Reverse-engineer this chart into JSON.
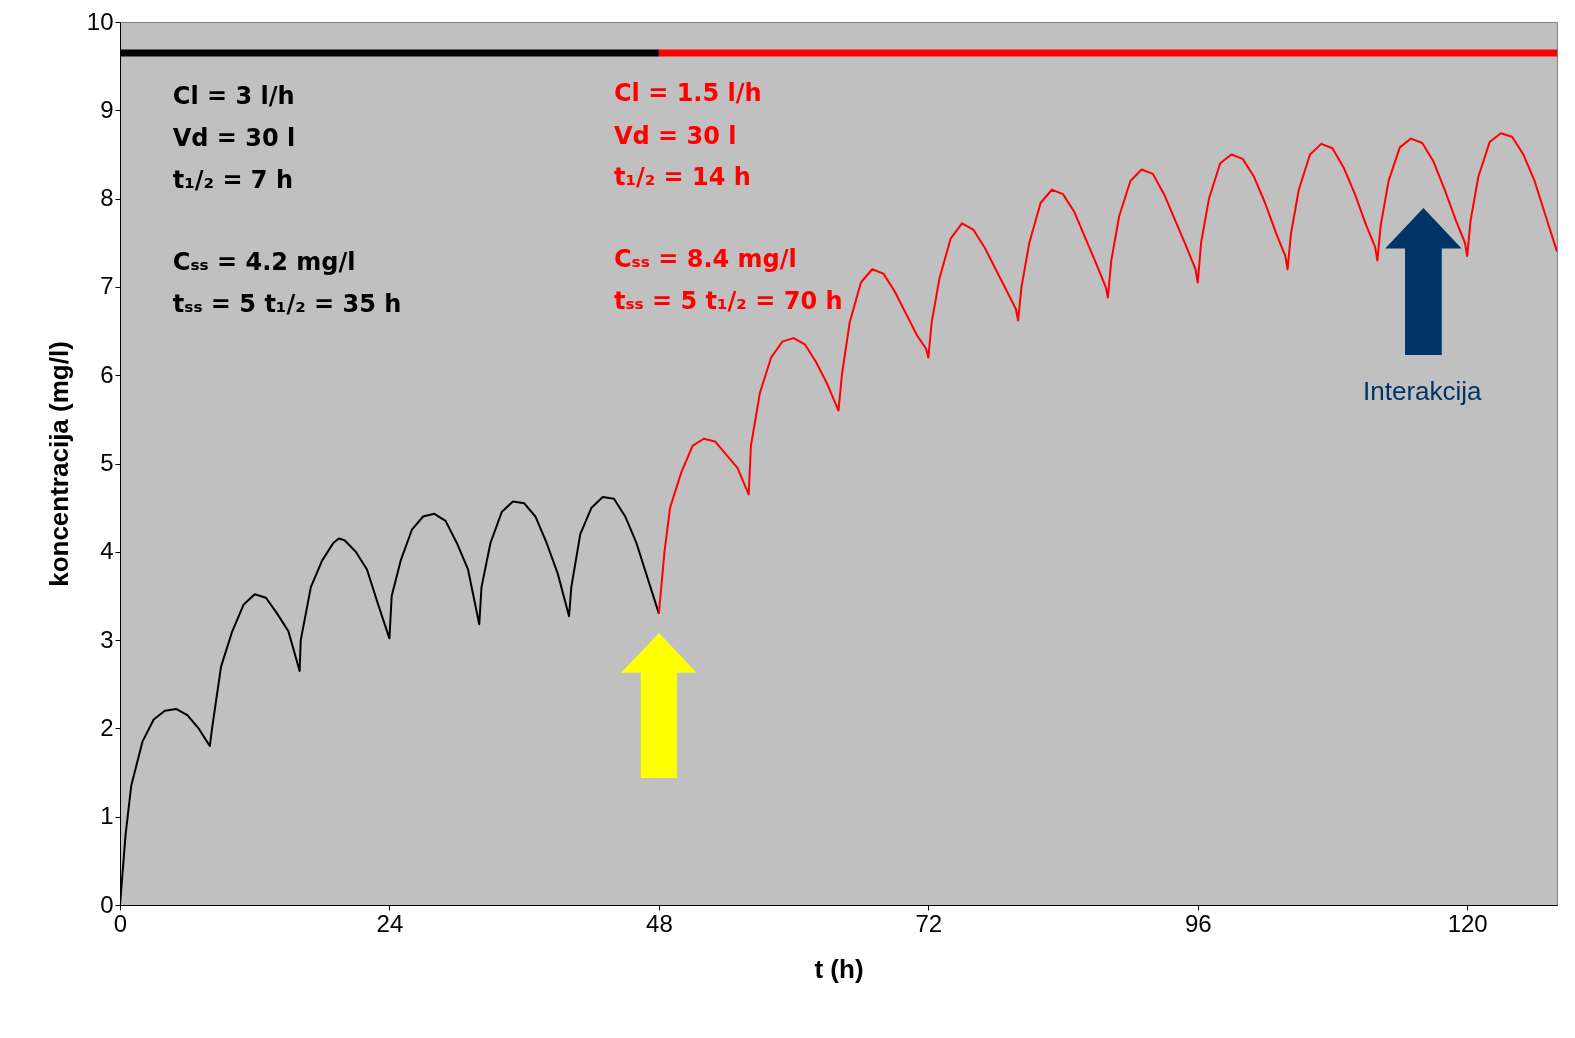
{
  "chart_data": {
    "type": "line",
    "xlabel": "t (h)",
    "ylabel": "koncentracija (mg/l)",
    "xlim": [
      0,
      128
    ],
    "xticks": [
      0,
      24,
      48,
      72,
      96,
      120
    ],
    "ylim": [
      0,
      10
    ],
    "yticks": [
      0,
      1,
      2,
      3,
      4,
      5,
      6,
      7,
      8,
      9,
      10
    ],
    "grid": false,
    "marker": "none",
    "line_style": "solid",
    "series": [
      {
        "color": "#000000",
        "x": [
          0,
          0.5,
          1,
          2,
          3,
          4,
          5,
          6,
          7,
          8,
          8.2,
          9,
          10,
          11,
          12,
          13,
          14,
          15,
          16,
          16.1,
          17,
          18,
          19,
          19.5,
          20,
          21,
          22,
          23,
          24,
          24.2,
          25,
          26,
          27,
          28,
          29,
          30,
          31,
          32,
          32.2,
          33,
          34,
          35,
          36,
          37,
          38,
          39,
          40,
          40.2,
          41,
          42,
          43,
          44,
          45,
          46,
          47,
          48
        ],
        "values": [
          0,
          0.8,
          1.35,
          1.85,
          2.1,
          2.2,
          2.22,
          2.15,
          2.0,
          1.8,
          2.0,
          2.7,
          3.1,
          3.4,
          3.52,
          3.48,
          3.3,
          3.1,
          2.65,
          3.0,
          3.6,
          3.9,
          4.1,
          4.15,
          4.13,
          4.0,
          3.8,
          3.4,
          3.02,
          3.5,
          3.9,
          4.25,
          4.4,
          4.43,
          4.35,
          4.1,
          3.8,
          3.18,
          3.6,
          4.1,
          4.45,
          4.57,
          4.55,
          4.4,
          4.1,
          3.75,
          3.27,
          3.6,
          4.2,
          4.5,
          4.62,
          4.6,
          4.4,
          4.1,
          3.7,
          3.3
        ]
      },
      {
        "color": "#ff0000",
        "x": [
          48,
          48.5,
          49,
          50,
          51,
          52,
          53,
          54,
          55,
          56,
          56.2,
          57,
          58,
          59,
          60,
          61,
          62,
          63,
          64,
          64.3,
          65,
          66,
          67,
          68,
          69,
          70,
          71,
          71.8,
          72,
          72.3,
          73,
          74,
          75,
          76,
          77,
          78,
          79,
          79.8,
          80,
          80.3,
          81,
          82,
          83,
          84,
          85,
          86,
          87,
          87.8,
          88,
          88.3,
          89,
          90,
          91,
          92,
          93,
          94,
          95,
          95.8,
          96,
          96.3,
          97,
          98,
          99,
          100,
          101,
          102,
          103,
          103.8,
          104,
          104.3,
          105,
          106,
          107,
          108,
          109,
          110,
          111,
          111.8,
          112,
          112.3,
          113,
          114,
          115,
          116,
          117,
          118,
          119,
          119.8,
          120,
          120.3,
          121,
          122,
          123,
          124,
          125,
          126,
          127,
          128
        ],
        "values": [
          3.3,
          4.0,
          4.5,
          4.9,
          5.2,
          5.28,
          5.25,
          5.1,
          4.95,
          4.65,
          5.2,
          5.8,
          6.2,
          6.38,
          6.42,
          6.35,
          6.15,
          5.9,
          5.6,
          6.0,
          6.6,
          7.05,
          7.2,
          7.15,
          6.95,
          6.7,
          6.45,
          6.3,
          6.2,
          6.6,
          7.1,
          7.55,
          7.72,
          7.65,
          7.45,
          7.2,
          6.95,
          6.75,
          6.62,
          7.0,
          7.5,
          7.95,
          8.1,
          8.05,
          7.85,
          7.55,
          7.25,
          7.0,
          6.88,
          7.3,
          7.8,
          8.2,
          8.33,
          8.28,
          8.05,
          7.75,
          7.45,
          7.2,
          7.05,
          7.5,
          8.0,
          8.4,
          8.5,
          8.45,
          8.25,
          7.95,
          7.6,
          7.35,
          7.2,
          7.6,
          8.1,
          8.5,
          8.62,
          8.57,
          8.35,
          8.05,
          7.7,
          7.45,
          7.3,
          7.7,
          8.2,
          8.58,
          8.68,
          8.63,
          8.42,
          8.1,
          7.75,
          7.5,
          7.35,
          7.75,
          8.25,
          8.64,
          8.74,
          8.7,
          8.5,
          8.2,
          7.8,
          7.4
        ]
      },
      {
        "color": "#000000",
        "x": [
          0,
          48
        ],
        "values": [
          9.65,
          9.65
        ]
      },
      {
        "color": "#ff0000",
        "x": [
          48,
          128
        ],
        "values": [
          9.65,
          9.65
        ]
      }
    ],
    "annotations": [
      "Cl = 3 l/h",
      "Vd = 30 l",
      "t₁/₂ = 7 h",
      "Cₛₛ = 4.2 mg/l",
      "tₛₛ = 5 t₁/₂ = 35 h",
      "Cl = 1.5 l/h",
      "Vd = 30 l",
      "t₁/₂ = 14 h",
      "Cₛₛ = 8.4 mg/l",
      "tₛₛ = 5 t₁/₂ = 70 h",
      "Interakcija"
    ]
  }
}
